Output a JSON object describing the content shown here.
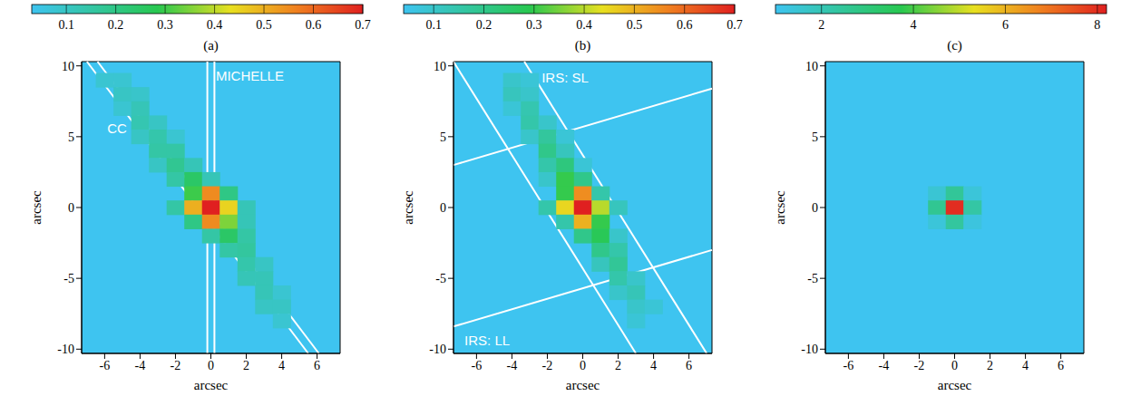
{
  "chart_data": [
    {
      "type": "heatmap",
      "title": "(a)",
      "xlabel": "arcsec",
      "ylabel": "arcsec",
      "xlim": [
        -7.3,
        7.3
      ],
      "ylim": [
        -10.3,
        10.3
      ],
      "xticks": [
        -6,
        -4,
        -2,
        0,
        2,
        4,
        6
      ],
      "yticks": [
        -10,
        -5,
        0,
        5,
        10
      ],
      "colorbar": {
        "range": [
          0.03,
          0.7
        ],
        "ticks": [
          0.1,
          0.2,
          0.3,
          0.4,
          0.5,
          0.6,
          0.7
        ]
      },
      "cell_size": 1,
      "cells": [
        [
          -6,
          9,
          0.08
        ],
        [
          -5,
          9,
          0.08
        ],
        [
          -5,
          8,
          0.1
        ],
        [
          -4,
          8,
          0.09
        ],
        [
          -5,
          7,
          0.08
        ],
        [
          -4,
          7,
          0.12
        ],
        [
          -4,
          6,
          0.13
        ],
        [
          -3,
          6,
          0.1
        ],
        [
          -4,
          5,
          0.1
        ],
        [
          -3,
          5,
          0.14
        ],
        [
          -2,
          5,
          0.08
        ],
        [
          -3,
          4,
          0.15
        ],
        [
          -2,
          4,
          0.15
        ],
        [
          -3,
          3,
          0.1
        ],
        [
          -2,
          3,
          0.18
        ],
        [
          -1,
          3,
          0.12
        ],
        [
          -2,
          2,
          0.15
        ],
        [
          -1,
          2,
          0.25
        ],
        [
          0,
          2,
          0.12
        ],
        [
          -1,
          1,
          0.3
        ],
        [
          0,
          1,
          0.55
        ],
        [
          1,
          1,
          0.2
        ],
        [
          -2,
          0,
          0.15
        ],
        [
          -1,
          0,
          0.5
        ],
        [
          0,
          0,
          0.7
        ],
        [
          1,
          0,
          0.45
        ],
        [
          2,
          0,
          0.12
        ],
        [
          -1,
          -1,
          0.2
        ],
        [
          0,
          -1,
          0.55
        ],
        [
          1,
          -1,
          0.35
        ],
        [
          2,
          -1,
          0.12
        ],
        [
          0,
          -2,
          0.15
        ],
        [
          1,
          -2,
          0.25
        ],
        [
          2,
          -2,
          0.15
        ],
        [
          1,
          -3,
          0.15
        ],
        [
          2,
          -3,
          0.16
        ],
        [
          2,
          -4,
          0.14
        ],
        [
          3,
          -4,
          0.1
        ],
        [
          2,
          -5,
          0.12
        ],
        [
          3,
          -5,
          0.12
        ],
        [
          3,
          -6,
          0.12
        ],
        [
          4,
          -6,
          0.08
        ],
        [
          3,
          -7,
          0.1
        ],
        [
          4,
          -7,
          0.1
        ],
        [
          4,
          -8,
          0.08
        ]
      ],
      "annotations": [
        {
          "label": "CC",
          "at": [
            -5.3,
            5.6
          ],
          "lines": [
            [
              [
                -7.0,
                10.3
              ],
              [
                5.5,
                -10.3
              ]
            ],
            [
              [
                -6.4,
                10.3
              ],
              [
                6.1,
                -10.3
              ]
            ]
          ]
        },
        {
          "label": "MICHELLE",
          "at": [
            2.2,
            9.3
          ],
          "lines": [
            [
              [
                -0.2,
                10.3
              ],
              [
                -0.2,
                -10.3
              ]
            ],
            [
              [
                0.2,
                10.3
              ],
              [
                0.2,
                -10.3
              ]
            ]
          ]
        }
      ]
    },
    {
      "type": "heatmap",
      "title": "(b)",
      "xlabel": "arcsec",
      "ylabel": "arcsec",
      "xlim": [
        -7.3,
        7.3
      ],
      "ylim": [
        -10.3,
        10.3
      ],
      "xticks": [
        -6,
        -4,
        -2,
        0,
        2,
        4,
        6
      ],
      "yticks": [
        -10,
        -5,
        0,
        5,
        10
      ],
      "colorbar": {
        "range": [
          0.04,
          0.7
        ],
        "ticks": [
          0.1,
          0.2,
          0.3,
          0.4,
          0.5,
          0.6,
          0.7
        ]
      },
      "cell_size": 1,
      "cells": [
        [
          -4,
          9,
          0.1
        ],
        [
          -3,
          9,
          0.08
        ],
        [
          -4,
          8,
          0.12
        ],
        [
          -3,
          8,
          0.1
        ],
        [
          -4,
          7,
          0.08
        ],
        [
          -3,
          7,
          0.14
        ],
        [
          -3,
          6,
          0.15
        ],
        [
          -2,
          6,
          0.1
        ],
        [
          -3,
          5,
          0.1
        ],
        [
          -2,
          5,
          0.17
        ],
        [
          -1,
          5,
          0.08
        ],
        [
          -2,
          4,
          0.2
        ],
        [
          -1,
          4,
          0.12
        ],
        [
          -2,
          3,
          0.15
        ],
        [
          -1,
          3,
          0.22
        ],
        [
          0,
          3,
          0.08
        ],
        [
          -2,
          2,
          0.1
        ],
        [
          -1,
          2,
          0.3
        ],
        [
          0,
          2,
          0.2
        ],
        [
          -1,
          1,
          0.3
        ],
        [
          0,
          1,
          0.55
        ],
        [
          1,
          1,
          0.15
        ],
        [
          -2,
          0,
          0.15
        ],
        [
          -1,
          0,
          0.45
        ],
        [
          0,
          0,
          0.7
        ],
        [
          1,
          0,
          0.4
        ],
        [
          2,
          0,
          0.12
        ],
        [
          -1,
          -1,
          0.15
        ],
        [
          0,
          -1,
          0.5
        ],
        [
          1,
          -1,
          0.3
        ],
        [
          0,
          -2,
          0.2
        ],
        [
          1,
          -2,
          0.28
        ],
        [
          2,
          -2,
          0.1
        ],
        [
          1,
          -3,
          0.2
        ],
        [
          2,
          -3,
          0.15
        ],
        [
          1,
          -4,
          0.12
        ],
        [
          2,
          -4,
          0.18
        ],
        [
          2,
          -5,
          0.15
        ],
        [
          3,
          -5,
          0.1
        ],
        [
          2,
          -6,
          0.1
        ],
        [
          3,
          -6,
          0.13
        ],
        [
          3,
          -7,
          0.1
        ],
        [
          4,
          -7,
          0.08
        ],
        [
          3,
          -8,
          0.08
        ]
      ],
      "annotations": [
        {
          "label": "IRS: SL",
          "at": [
            -1.0,
            9.2
          ],
          "lines": [
            [
              [
                -7.3,
                10.3
              ],
              [
                3.0,
                -10.3
              ]
            ],
            [
              [
                -3.3,
                10.3
              ],
              [
                7.0,
                -10.3
              ]
            ]
          ]
        },
        {
          "label": "IRS: LL",
          "at": [
            -5.4,
            -9.4
          ],
          "lines": [
            [
              [
                -7.3,
                3.0
              ],
              [
                7.3,
                8.4
              ]
            ],
            [
              [
                -7.3,
                -8.4
              ],
              [
                7.3,
                -3.0
              ]
            ]
          ]
        }
      ]
    },
    {
      "type": "heatmap",
      "title": "(c)",
      "xlabel": "arcsec",
      "ylabel": "arcsec",
      "xlim": [
        -7.3,
        7.3
      ],
      "ylim": [
        -10.3,
        10.3
      ],
      "xticks": [
        -6,
        -4,
        -2,
        0,
        2,
        4,
        6
      ],
      "yticks": [
        -10,
        -5,
        0,
        5,
        10
      ],
      "colorbar": {
        "range": [
          1,
          8.2
        ],
        "ticks": [
          2,
          4,
          6,
          8
        ]
      },
      "cell_size": 1,
      "cells": [
        [
          -1,
          1,
          1.5
        ],
        [
          0,
          1,
          2.5
        ],
        [
          1,
          1,
          1.4
        ],
        [
          -1,
          0,
          2.6
        ],
        [
          0,
          0,
          8
        ],
        [
          1,
          0,
          2.3
        ],
        [
          -1,
          -1,
          1.4
        ],
        [
          0,
          -1,
          2.4
        ],
        [
          1,
          -1,
          1.3
        ]
      ],
      "annotations": []
    }
  ]
}
